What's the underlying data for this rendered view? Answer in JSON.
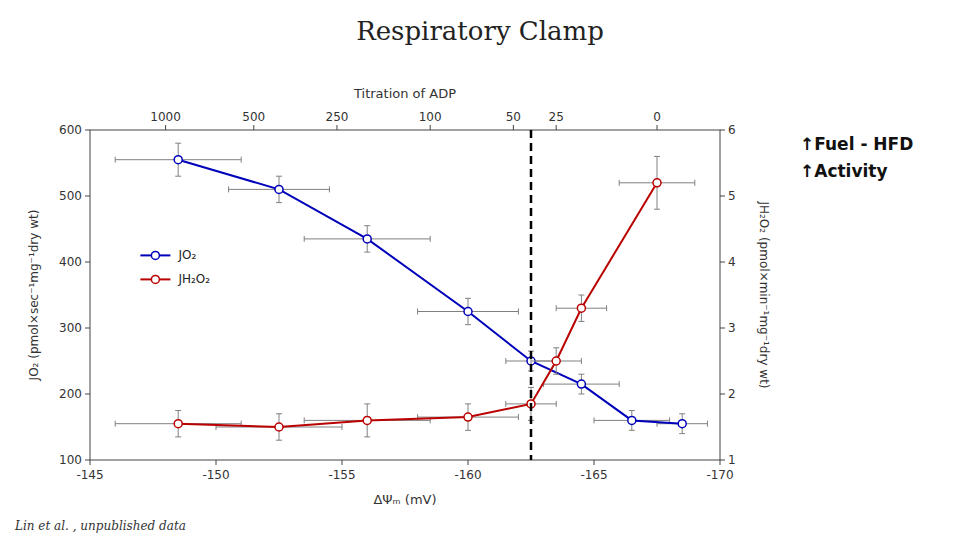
{
  "chart_data": {
    "type": "line",
    "title": "Respiratory Clamp",
    "xlabel": "ΔΨₘ (mV)",
    "ylabel": "JO₂ (pmol×sec⁻¹mg⁻¹dry wt)",
    "y2label": "JH₂O₂ (pmol×min⁻¹mg⁻¹dry wt)",
    "x2label": "Titration of ADP",
    "annotations": [
      "↑Fuel - HFD\n↑Activity",
      "Lin et al. , unpublished data"
    ],
    "xlim": [
      -145,
      -170
    ],
    "xticks": [
      -145,
      -150,
      -155,
      -160,
      -165,
      -170
    ],
    "ylim": [
      100,
      600
    ],
    "yticks": [
      100,
      200,
      300,
      400,
      500,
      600
    ],
    "y2lim": [
      1,
      6
    ],
    "y2ticks": [
      1,
      2,
      3,
      4,
      5,
      6
    ],
    "x2ticks": [
      {
        "value": -148.0,
        "label": "1000"
      },
      {
        "value": -151.5,
        "label": "500"
      },
      {
        "value": -154.8,
        "label": "250"
      },
      {
        "value": -158.5,
        "label": "100"
      },
      {
        "value": -161.8,
        "label": "50"
      },
      {
        "value": -163.5,
        "label": "25"
      },
      {
        "value": -167.5,
        "label": "0"
      }
    ],
    "vline": -162.5,
    "grid": false,
    "legend": "left",
    "series": [
      {
        "name": "JO₂",
        "color": "#0000BB",
        "axis": "y",
        "marker": "circle",
        "line_style": "solid",
        "x": [
          -148.5,
          -152.5,
          -156.0,
          -160.0,
          -162.5,
          -164.5,
          -166.5,
          -168.5
        ],
        "values": [
          555,
          510,
          435,
          325,
          250,
          215,
          160,
          155
        ],
        "x_errors": [
          2.5,
          2.0,
          2.5,
          2.0,
          1.0,
          1.5,
          1.5,
          1.0
        ],
        "errors": [
          25,
          20,
          20,
          20,
          15,
          15,
          15,
          15
        ]
      },
      {
        "name": "JH₂O₂",
        "color": "#BB0000",
        "axis": "y2",
        "marker": "circle",
        "line_style": "solid",
        "x": [
          -148.5,
          -152.5,
          -156.0,
          -160.0,
          -162.5,
          -163.5,
          -164.5,
          -167.5
        ],
        "values": [
          1.55,
          1.5,
          1.6,
          1.65,
          1.85,
          2.5,
          3.3,
          5.2
        ],
        "x_errors": [
          2.5,
          2.5,
          2.5,
          2.0,
          1.0,
          1.0,
          1.0,
          1.5
        ],
        "errors": [
          0.2,
          0.2,
          0.25,
          0.2,
          0.25,
          0.2,
          0.2,
          0.4
        ]
      }
    ]
  }
}
